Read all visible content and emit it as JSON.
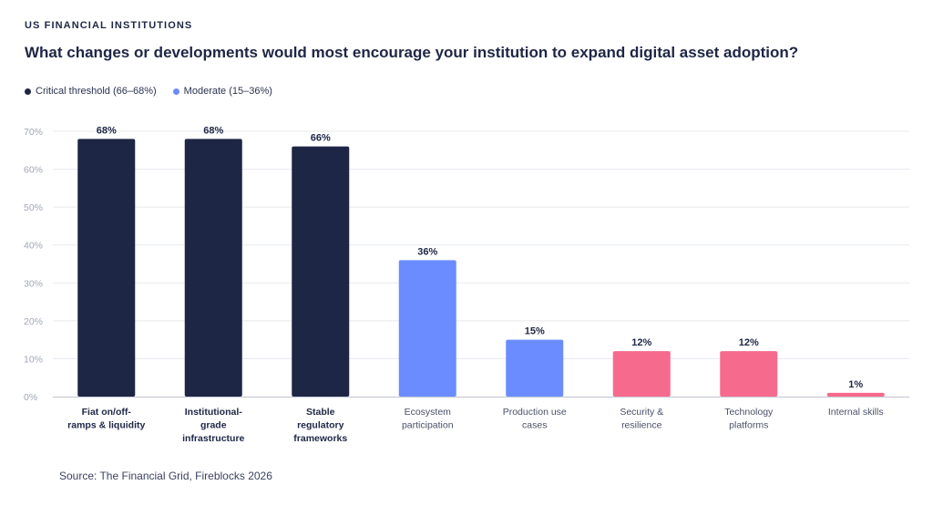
{
  "header": {
    "eyebrow": "US FINANCIAL INSTITUTIONS",
    "title": "What changes or developments would most encourage your institution to expand digital asset adoption?"
  },
  "legend": [
    {
      "label": "Critical threshold (66–68%)",
      "color": "#1e2645"
    },
    {
      "label": "Moderate (15–36%)",
      "color": "#6b8cff"
    }
  ],
  "footer": {
    "source": "Source: The Financial Grid, Fireblocks 2026"
  },
  "colors": {
    "dark": "#1e2645",
    "blue": "#6b8cff",
    "pink": "#f66a8e",
    "grid": "#e6e8ee",
    "axis": "#c9ccd6"
  },
  "chart_data": {
    "type": "bar",
    "ylim": [
      0,
      70
    ],
    "yticks": [
      "0%",
      "10%",
      "20%",
      "30%",
      "40%",
      "50%",
      "60%",
      "70%"
    ],
    "grid": true,
    "legend_position": "top-left",
    "categories": [
      {
        "lines": [
          "Fiat on/off-",
          "ramps & liquidity"
        ],
        "bold": true
      },
      {
        "lines": [
          "Institutional-",
          "grade",
          "infrastructure"
        ],
        "bold": true
      },
      {
        "lines": [
          "Stable",
          "regulatory",
          "frameworks"
        ],
        "bold": true
      },
      {
        "lines": [
          "Ecosystem",
          "participation"
        ],
        "bold": false
      },
      {
        "lines": [
          "Production use",
          "cases"
        ],
        "bold": false
      },
      {
        "lines": [
          "Security &",
          "resilience"
        ],
        "bold": false
      },
      {
        "lines": [
          "Technology",
          "platforms"
        ],
        "bold": false
      },
      {
        "lines": [
          "Internal skills"
        ],
        "bold": false
      }
    ],
    "values": [
      68,
      68,
      66,
      36,
      15,
      12,
      12,
      1
    ],
    "value_labels": [
      "68%",
      "68%",
      "66%",
      "36%",
      "15%",
      "12%",
      "12%",
      "1%"
    ],
    "bar_colors": [
      "#1e2645",
      "#1e2645",
      "#1e2645",
      "#6b8cff",
      "#6b8cff",
      "#f66a8e",
      "#f66a8e",
      "#f66a8e"
    ]
  }
}
